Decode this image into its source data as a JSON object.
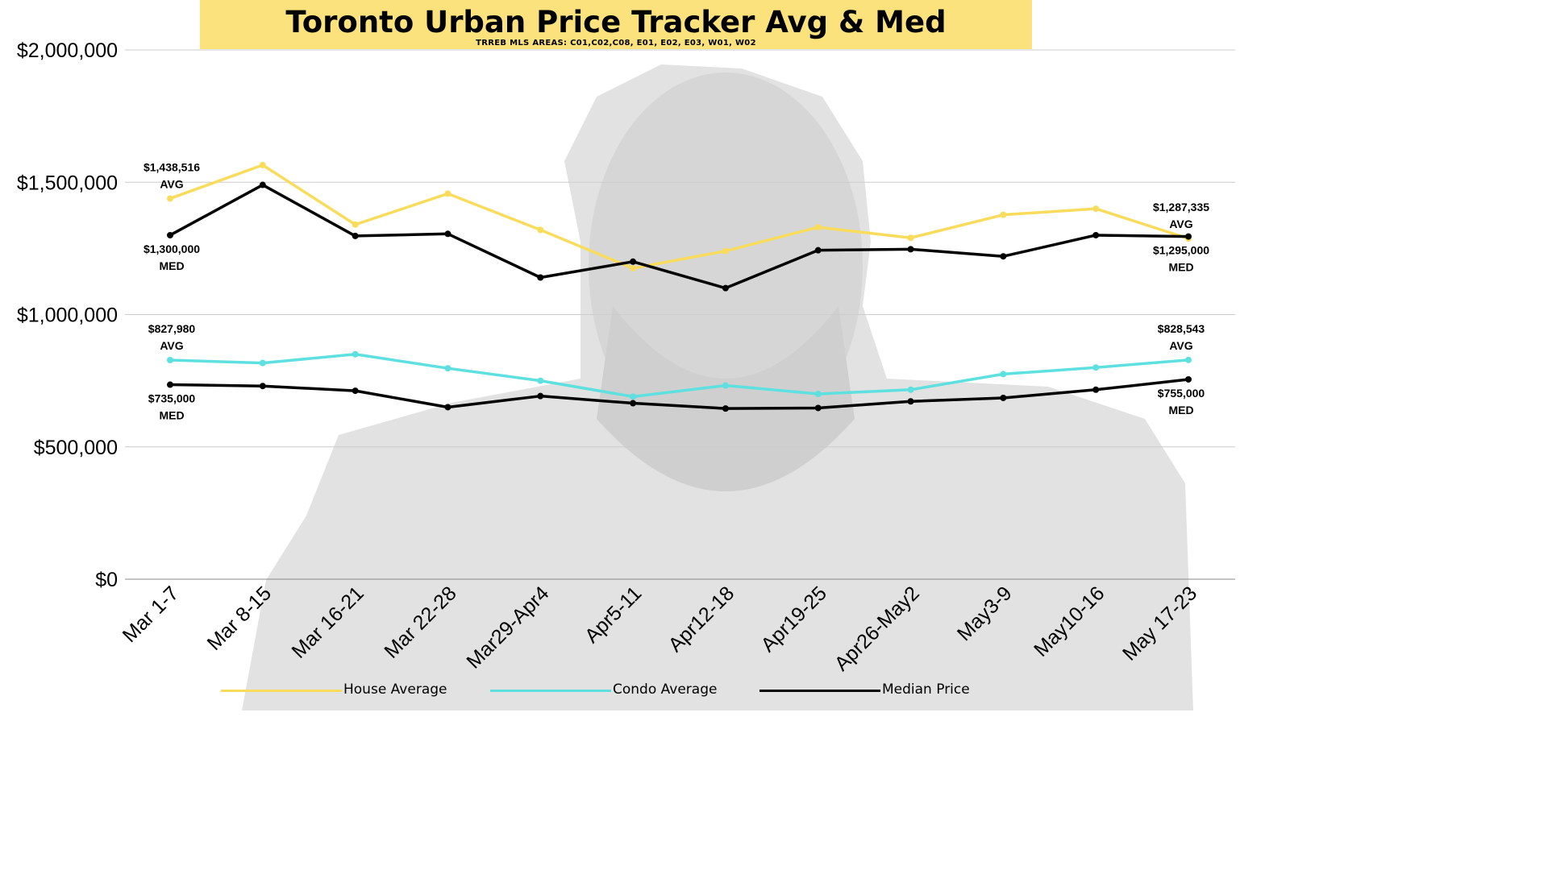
{
  "title": "Toronto Urban Price Tracker Avg & Med",
  "subtitle": "TRREB MLS AREAS: C01,C02,C08, E01, E02, E03, W01, W02",
  "colors": {
    "house": "#f9dc5c",
    "condo": "#5ee0e0",
    "median": "#000000",
    "banner": "#fbe27c",
    "grid": "#cccccc",
    "watermark": "#dcdcdc"
  },
  "chart_data": {
    "type": "line",
    "categories": [
      "Mar 1-7",
      "Mar 8-15",
      "Mar 16-21",
      "Mar 22-28",
      "Mar29-Apr4",
      "Apr5-11",
      "Apr12-18",
      "Apr19-25",
      "Apr26-May2",
      "May3-9",
      "May10-16",
      "May 17-23"
    ],
    "y_ticks": [
      "$0",
      "$500,000",
      "$1,000,000",
      "$1,500,000",
      "$2,000,000"
    ],
    "ylim": [
      0,
      2000000
    ],
    "grid": true,
    "legend_position": "bottom",
    "series": [
      {
        "name": "House Average",
        "color": "#f9dc5c",
        "values": [
          1438516,
          1565000,
          1340000,
          1457000,
          1320000,
          1175000,
          1240000,
          1330000,
          1290000,
          1377000,
          1400000,
          1287335
        ]
      },
      {
        "name": "Median Price",
        "color": "#000000",
        "values": [
          1300000,
          1490000,
          1297000,
          1305000,
          1140000,
          1200000,
          1100000,
          1243000,
          1247000,
          1220000,
          1300000,
          1295000
        ]
      },
      {
        "name": "Condo Average",
        "color": "#5ee0e0",
        "values": [
          827980,
          817000,
          850000,
          797000,
          750000,
          690000,
          732000,
          700000,
          716000,
          775000,
          800000,
          828543
        ]
      },
      {
        "name": "Median Price",
        "color": "#000000",
        "values": [
          735000,
          730000,
          712000,
          650000,
          692000,
          665000,
          645000,
          647000,
          672000,
          685000,
          716000,
          755000
        ]
      }
    ],
    "annotations": [
      {
        "value": "$1,438,516",
        "tag": "AVG"
      },
      {
        "value": "$1,300,000",
        "tag": "MED"
      },
      {
        "value": "$1,287,335",
        "tag": "AVG"
      },
      {
        "value": "$1,295,000",
        "tag": "MED"
      },
      {
        "value": "$827,980",
        "tag": "AVG"
      },
      {
        "value": "$735,000",
        "tag": "MED"
      },
      {
        "value": "$828,543",
        "tag": "AVG"
      },
      {
        "value": "$755,000",
        "tag": "MED"
      }
    ]
  },
  "legend": [
    {
      "label": "House Average",
      "color": "#f9dc5c"
    },
    {
      "label": "Condo Average",
      "color": "#5ee0e0"
    },
    {
      "label": "Median Price",
      "color": "#000000"
    }
  ]
}
